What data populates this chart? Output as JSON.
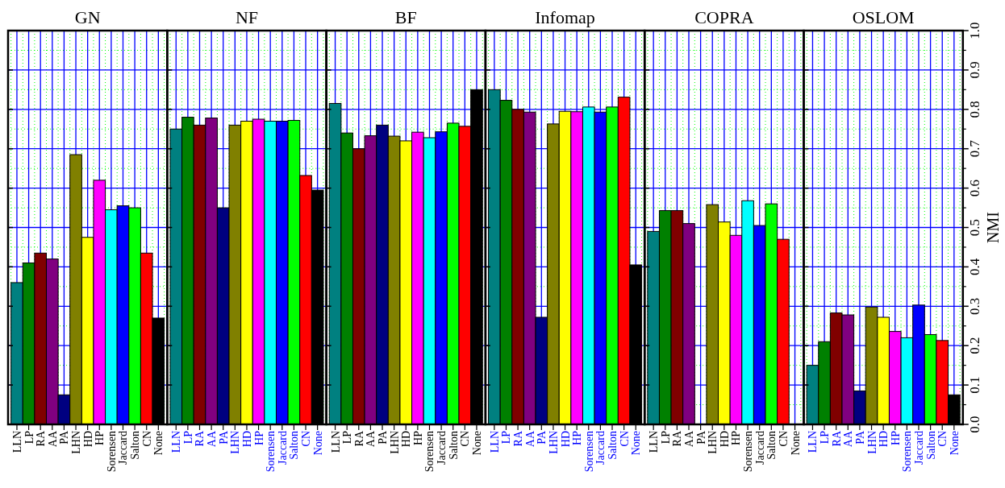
{
  "chart_data": [
    {
      "type": "bar",
      "title": "GN",
      "categories": [
        "LLN",
        "LP",
        "RA",
        "AA",
        "PA",
        "LHN",
        "HD",
        "HP",
        "Sorensen",
        "Jaccard",
        "Salton",
        "CN",
        "None"
      ],
      "values": [
        0.36,
        0.41,
        0.435,
        0.42,
        0.075,
        0.685,
        0.475,
        0.62,
        0.545,
        0.555,
        0.55,
        0.435,
        0.27
      ],
      "colors": [
        "#008080",
        "#008000",
        "#800000",
        "#800080",
        "#000080",
        "#808000",
        "#ffff00",
        "#ff00ff",
        "#00ffff",
        "#0000ff",
        "#00ff00",
        "#ff0000",
        "#000000"
      ],
      "ylim": [
        0,
        1
      ],
      "yticks": [
        0,
        0.1,
        0.2,
        0.3,
        0.4,
        0.5,
        0.6,
        0.7,
        0.8,
        0.9,
        1
      ],
      "grid": true,
      "tick_labels": "x"
    },
    {
      "type": "bar",
      "title": "NF",
      "categories": [
        "LLN",
        "LP",
        "RA",
        "AA",
        "PA",
        "LHN",
        "HD",
        "HP",
        "Sorensen",
        "Jaccard",
        "Salton",
        "CN",
        "None"
      ],
      "values": [
        0.75,
        0.78,
        0.76,
        0.778,
        0.55,
        0.76,
        0.77,
        0.775,
        0.77,
        0.77,
        0.772,
        0.632,
        0.595
      ],
      "colors": [
        "#008080",
        "#008000",
        "#800000",
        "#800080",
        "#000080",
        "#808000",
        "#ffff00",
        "#ff00ff",
        "#00ffff",
        "#0000ff",
        "#00ff00",
        "#ff0000",
        "#000000"
      ],
      "ylim": [
        0,
        1
      ],
      "yticks": [
        0,
        0.1,
        0.2,
        0.3,
        0.4,
        0.5,
        0.6,
        0.7,
        0.8,
        0.9,
        1
      ],
      "grid": true,
      "tick_labels": "x"
    },
    {
      "type": "bar",
      "title": "BF",
      "categories": [
        "LLN",
        "LP",
        "RA",
        "AA",
        "PA",
        "LHN",
        "HD",
        "HP",
        "Sorensen",
        "Jaccard",
        "Salton",
        "CN",
        "None"
      ],
      "values": [
        0.815,
        0.74,
        0.7,
        0.733,
        0.76,
        0.732,
        0.72,
        0.742,
        0.728,
        0.743,
        0.765,
        0.757,
        0.85
      ],
      "colors": [
        "#008080",
        "#008000",
        "#800000",
        "#800080",
        "#000080",
        "#808000",
        "#ffff00",
        "#ff00ff",
        "#00ffff",
        "#0000ff",
        "#00ff00",
        "#ff0000",
        "#000000"
      ],
      "ylim": [
        0,
        1
      ],
      "yticks": [
        0,
        0.1,
        0.2,
        0.3,
        0.4,
        0.5,
        0.6,
        0.7,
        0.8,
        0.9,
        1
      ],
      "grid": true,
      "tick_labels": "x"
    },
    {
      "type": "bar",
      "title": "Infomap",
      "categories": [
        "LLN",
        "LP",
        "RA",
        "AA",
        "PA",
        "LHN",
        "HD",
        "HP",
        "Sorensen",
        "Jaccard",
        "Salton",
        "CN",
        "None"
      ],
      "values": [
        0.85,
        0.823,
        0.8,
        0.793,
        0.272,
        0.763,
        0.795,
        0.794,
        0.806,
        0.793,
        0.806,
        0.831,
        0.405
      ],
      "colors": [
        "#008080",
        "#008000",
        "#800000",
        "#800080",
        "#000080",
        "#808000",
        "#ffff00",
        "#ff00ff",
        "#00ffff",
        "#0000ff",
        "#00ff00",
        "#ff0000",
        "#000000"
      ],
      "ylim": [
        0,
        1
      ],
      "yticks": [
        0,
        0.1,
        0.2,
        0.3,
        0.4,
        0.5,
        0.6,
        0.7,
        0.8,
        0.9,
        1
      ],
      "grid": true,
      "tick_labels": "x"
    },
    {
      "type": "bar",
      "title": "COPRA",
      "categories": [
        "LLN",
        "LP",
        "RA",
        "AA",
        "PA",
        "LHN",
        "HD",
        "HP",
        "Sorensen",
        "Jaccard",
        "Salton",
        "CN",
        "None"
      ],
      "values": [
        0.49,
        0.543,
        0.543,
        0.51,
        null,
        0.558,
        0.514,
        0.48,
        0.568,
        0.505,
        0.56,
        0.47,
        null
      ],
      "colors": [
        "#008080",
        "#008000",
        "#800000",
        "#800080",
        null,
        "#808000",
        "#ffff00",
        "#ff00ff",
        "#00ffff",
        "#0000ff",
        "#00ff00",
        "#ff0000",
        null
      ],
      "ylim": [
        0,
        1
      ],
      "yticks": [
        0,
        0.1,
        0.2,
        0.3,
        0.4,
        0.5,
        0.6,
        0.7,
        0.8,
        0.9,
        1
      ],
      "grid": true,
      "tick_labels": "x"
    },
    {
      "type": "bar",
      "title": "OSLOM",
      "ylabel": "NMI",
      "categories": [
        "LLN",
        "LP",
        "RA",
        "AA",
        "PA",
        "LHN",
        "HD",
        "HP",
        "Sorensen",
        "Jaccard",
        "Salton",
        "CN",
        "None"
      ],
      "values": [
        0.15,
        0.21,
        0.283,
        0.278,
        0.085,
        0.298,
        0.272,
        0.236,
        0.22,
        0.303,
        0.228,
        0.213,
        0.075
      ],
      "colors": [
        "#008080",
        "#008000",
        "#800000",
        "#800080",
        "#000080",
        "#808000",
        "#ffff00",
        "#ff00ff",
        "#00ffff",
        "#0000ff",
        "#00ff00",
        "#ff0000",
        "#000000"
      ],
      "ylim": [
        0,
        1
      ],
      "yticks": [
        {
          "value": 0,
          "label": "0.0"
        },
        0.1,
        0.2,
        0.3,
        0.4,
        0.5,
        0.6,
        0.7,
        0.8,
        0.9,
        {
          "value": 1,
          "label": "1.0"
        }
      ],
      "grid": true
    }
  ]
}
